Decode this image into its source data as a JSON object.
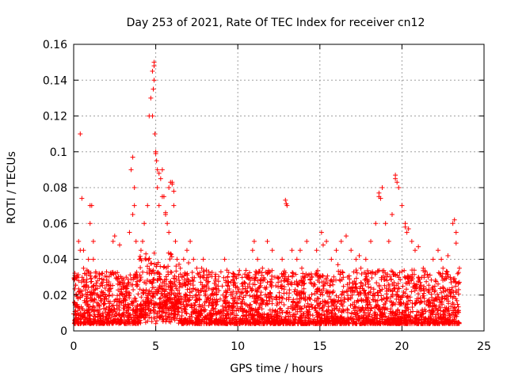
{
  "chart_data": {
    "type": "scatter",
    "title": "Day 253 of 2021, Rate Of TEC Index for receiver cn12",
    "xlabel": "GPS time / hours",
    "ylabel": "ROTI / TECUs",
    "xlim": [
      0,
      25
    ],
    "ylim": [
      0,
      0.16
    ],
    "xticks": [
      0,
      5,
      10,
      15,
      20,
      25
    ],
    "xtick_labels": [
      "0",
      "5",
      "10",
      "15",
      "20",
      "25"
    ],
    "yticks": [
      0,
      0.02,
      0.04,
      0.06,
      0.08,
      0.1,
      0.12,
      0.14,
      0.16
    ],
    "ytick_labels": [
      "0",
      "0.02",
      "0.04",
      "0.06",
      "0.08",
      "0.1",
      "0.12",
      "0.14",
      "0.16"
    ],
    "grid": true,
    "marker": "+",
    "color": "#ff0000",
    "series": [
      {
        "x": [
          0.1,
          0.2,
          0.3,
          0.4,
          0.5,
          0.6,
          0.7,
          0.8,
          0.9,
          1.0,
          1.1,
          1.2,
          1.3,
          1.4,
          1.5,
          1.6,
          1.8,
          2.0,
          2.2,
          2.4,
          2.6,
          2.8,
          3.0,
          3.2,
          3.4,
          3.5,
          3.6,
          3.7,
          3.8,
          3.9,
          4.0,
          4.1,
          4.2,
          4.3,
          4.4,
          4.5,
          4.6,
          4.7,
          4.8,
          4.9,
          5.0,
          5.1,
          5.2,
          5.3,
          5.4,
          5.5,
          5.6,
          5.7,
          5.8,
          5.9,
          6.0,
          6.1,
          6.2,
          6.3,
          6.5,
          6.7,
          6.9,
          7.1,
          7.3,
          7.5,
          7.7,
          7.9,
          8.2,
          8.5,
          8.8,
          9.1,
          9.4,
          9.7,
          10.0,
          10.3,
          10.6,
          10.9,
          11.2,
          11.5,
          11.8,
          12.1,
          12.4,
          12.7,
          13.0,
          13.3,
          13.6,
          13.9,
          14.2,
          14.5,
          14.8,
          15.1,
          15.4,
          15.7,
          16.0,
          16.3,
          16.6,
          16.9,
          17.2,
          17.5,
          17.8,
          18.1,
          18.4,
          18.6,
          18.8,
          19.0,
          19.2,
          19.4,
          19.6,
          19.8,
          20.0,
          20.2,
          20.4,
          20.6,
          20.8,
          21.0,
          21.3,
          21.6,
          21.9,
          22.2,
          22.5,
          22.8,
          23.1,
          23.3,
          23.5,
          0.4,
          0.5,
          1.0,
          2.5,
          3.6,
          3.7,
          4.8,
          4.85,
          4.9,
          4.9,
          4.95,
          5.0,
          5.05,
          5.1,
          5.2,
          5.4,
          5.6,
          5.8,
          6.0,
          6.1,
          12.9,
          12.95,
          18.6,
          18.7,
          19.6,
          19.7,
          20.2,
          20.3,
          23.2,
          23.3,
          0.6,
          1.2,
          2.8,
          4.4,
          7.0,
          7.8,
          9.2,
          11.0,
          13.8,
          15.2,
          16.1,
          17.4,
          21.0,
          22.4,
          0.3,
          0.8,
          1.7,
          3.1,
          6.6,
          8.6,
          10.4,
          12.0,
          14.0,
          16.8,
          18.2,
          19.2,
          20.6,
          22.0,
          23.0
        ],
        "y": [
          0.015,
          0.03,
          0.05,
          0.045,
          0.02,
          0.035,
          0.025,
          0.018,
          0.04,
          0.06,
          0.07,
          0.05,
          0.03,
          0.02,
          0.015,
          0.025,
          0.02,
          0.018,
          0.022,
          0.05,
          0.03,
          0.02,
          0.025,
          0.03,
          0.055,
          0.09,
          0.097,
          0.07,
          0.05,
          0.03,
          0.04,
          0.045,
          0.05,
          0.06,
          0.04,
          0.07,
          0.12,
          0.13,
          0.145,
          0.15,
          0.1,
          0.08,
          0.07,
          0.085,
          0.09,
          0.075,
          0.065,
          0.06,
          0.08,
          0.083,
          0.082,
          0.07,
          0.05,
          0.04,
          0.035,
          0.04,
          0.045,
          0.05,
          0.04,
          0.035,
          0.03,
          0.04,
          0.03,
          0.02,
          0.025,
          0.02,
          0.025,
          0.018,
          0.022,
          0.025,
          0.03,
          0.045,
          0.04,
          0.035,
          0.05,
          0.045,
          0.03,
          0.04,
          0.07,
          0.045,
          0.04,
          0.035,
          0.05,
          0.03,
          0.045,
          0.055,
          0.05,
          0.04,
          0.045,
          0.05,
          0.053,
          0.045,
          0.04,
          0.035,
          0.04,
          0.05,
          0.06,
          0.075,
          0.08,
          0.06,
          0.05,
          0.065,
          0.085,
          0.08,
          0.07,
          0.06,
          0.057,
          0.05,
          0.045,
          0.03,
          0.035,
          0.03,
          0.04,
          0.045,
          0.035,
          0.042,
          0.06,
          0.055,
          0.035,
          0.11,
          0.074,
          0.07,
          0.053,
          0.065,
          0.08,
          0.12,
          0.135,
          0.148,
          0.14,
          0.11,
          0.099,
          0.095,
          0.09,
          0.088,
          0.075,
          0.066,
          0.055,
          0.083,
          0.078,
          0.073,
          0.071,
          0.077,
          0.074,
          0.087,
          0.083,
          0.058,
          0.055,
          0.062,
          0.049,
          0.045,
          0.04,
          0.048,
          0.043,
          0.038,
          0.035,
          0.04,
          0.05,
          0.045,
          0.048,
          0.037,
          0.042,
          0.047,
          0.04,
          0.028,
          0.025,
          0.022,
          0.02,
          0.03,
          0.024,
          0.027,
          0.026,
          0.021,
          0.029,
          0.033,
          0.023,
          0.03,
          0.025,
          0.027
        ]
      }
    ]
  }
}
